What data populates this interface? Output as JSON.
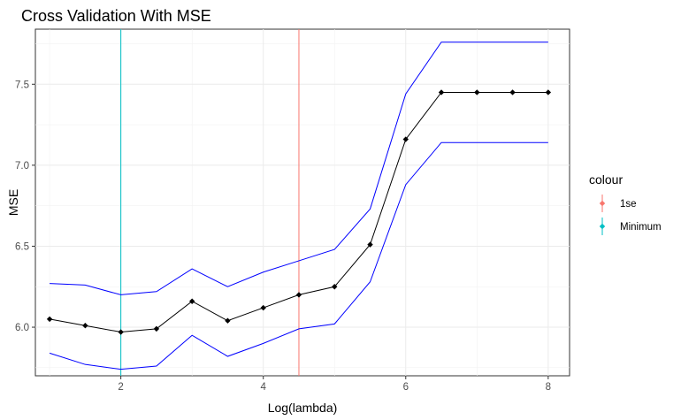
{
  "chart_data": {
    "type": "line",
    "title": "Cross Validation With MSE",
    "xlabel": "Log(lambda)",
    "ylabel": "MSE",
    "xlim": [
      0.8,
      8.3
    ],
    "ylim": [
      5.7,
      7.84
    ],
    "x_ticks": [
      2,
      4,
      6,
      8
    ],
    "y_ticks": [
      6.0,
      6.5,
      7.0,
      7.5
    ],
    "grid": true,
    "x": [
      1.0,
      1.5,
      2.0,
      2.5,
      3.0,
      3.5,
      4.0,
      4.5,
      5.0,
      5.5,
      6.0,
      6.5,
      7.0,
      7.5,
      8.0
    ],
    "series": [
      {
        "role": "mean",
        "color": "#000000",
        "values": [
          6.05,
          6.01,
          5.97,
          5.99,
          6.16,
          6.04,
          6.12,
          6.2,
          6.25,
          6.51,
          7.16,
          7.45,
          7.45,
          7.45,
          7.45
        ]
      },
      {
        "role": "upper",
        "color": "#0000ff",
        "values": [
          6.27,
          6.26,
          6.2,
          6.22,
          6.36,
          6.25,
          6.34,
          6.41,
          6.48,
          6.73,
          7.44,
          7.76,
          7.76,
          7.76,
          7.76
        ]
      },
      {
        "role": "lower",
        "color": "#0000ff",
        "values": [
          5.84,
          5.77,
          5.74,
          5.76,
          5.95,
          5.82,
          5.9,
          5.99,
          6.02,
          6.28,
          6.88,
          7.14,
          7.14,
          7.14,
          7.14
        ]
      }
    ],
    "vlines": [
      {
        "name": "1se",
        "x": 4.5,
        "color": "#f8766d"
      },
      {
        "name": "Minimum",
        "x": 2.0,
        "color": "#00bfc4"
      }
    ],
    "legend": {
      "title": "colour",
      "position": "right",
      "items": [
        {
          "label": "1se",
          "color": "#f8766d"
        },
        {
          "label": "Minimum",
          "color": "#00bfc4"
        }
      ]
    }
  }
}
